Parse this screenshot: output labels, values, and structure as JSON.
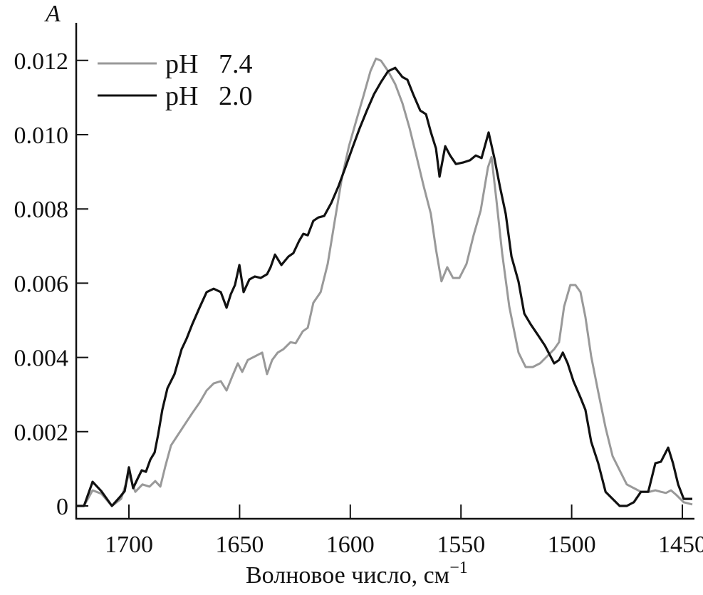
{
  "chart_data": {
    "type": "line",
    "title": "",
    "xlabel": "Волновое число, см",
    "xlabel_superscript": "−1",
    "ylabel": "A",
    "xlim": [
      1723.8,
      1445.5
    ],
    "x_reversed": true,
    "ylim": [
      0,
      0.0124
    ],
    "xticks": [
      1700,
      1650,
      1600,
      1550,
      1500,
      1450
    ],
    "xtick_labels": [
      "1700",
      "1650",
      "1600",
      "1550",
      "1500",
      "1450"
    ],
    "yticks": [
      0,
      0.002,
      0.004,
      0.006,
      0.008,
      0.01,
      0.012
    ],
    "ytick_labels": [
      "0",
      "0.002",
      "0.004",
      "0.006",
      "0.008",
      "0.010",
      "0.012"
    ],
    "grid": false,
    "legend_position": "top-left",
    "series": [
      {
        "name": "pH   7.4",
        "color": "#999999",
        "x": [
          1723.8,
          1720.3,
          1716.4,
          1712.5,
          1707.7,
          1703.5,
          1700,
          1697.1,
          1693.9,
          1690.7,
          1688.1,
          1685.8,
          1683.6,
          1681.0,
          1677.8,
          1674.6,
          1671.4,
          1668.1,
          1664.9,
          1661.7,
          1658.5,
          1655.9,
          1653.3,
          1650.8,
          1648.8,
          1646.3,
          1643.0,
          1639.8,
          1637.6,
          1635.3,
          1632.8,
          1630.2,
          1627.0,
          1624.7,
          1621.5,
          1619.2,
          1616.7,
          1613.4,
          1610.2,
          1607.0,
          1603.8,
          1600.6,
          1597.4,
          1594.1,
          1590.9,
          1588.4,
          1586.1,
          1582.9,
          1579.7,
          1576.4,
          1573.2,
          1570.0,
          1566.8,
          1563.6,
          1561.3,
          1558.8,
          1556.2,
          1553.6,
          1550.7,
          1547.5,
          1544.3,
          1541.1,
          1537.8,
          1536.2,
          1534.0,
          1531.4,
          1528.2,
          1524.0,
          1520.8,
          1517.6,
          1514.3,
          1511.1,
          1507.9,
          1505.7,
          1503.4,
          1500.6,
          1498.3,
          1496.0,
          1493.8,
          1491.2,
          1488.0,
          1484.7,
          1481.5,
          1478.3,
          1475.1,
          1471.9,
          1468.7,
          1464.8,
          1462.2,
          1459.7,
          1457.4,
          1455.1,
          1452.6,
          1449.4,
          1445.5
        ],
        "y": [
          0,
          0,
          0.00042,
          0.00033,
          0,
          0.00019,
          0.00086,
          0.00038,
          0.00058,
          0.00052,
          0.00067,
          0.00052,
          0.00106,
          0.00163,
          0.00192,
          0.00221,
          0.0025,
          0.00278,
          0.00311,
          0.0033,
          0.00336,
          0.00311,
          0.00349,
          0.00384,
          0.00361,
          0.00393,
          0.00403,
          0.00413,
          0.00355,
          0.00393,
          0.00413,
          0.00422,
          0.00441,
          0.00438,
          0.0047,
          0.0048,
          0.00547,
          0.00576,
          0.00652,
          0.00768,
          0.00883,
          0.00969,
          0.01036,
          0.01103,
          0.01171,
          0.01205,
          0.01199,
          0.01171,
          0.01136,
          0.01084,
          0.01017,
          0.0094,
          0.0086,
          0.00787,
          0.00691,
          0.00605,
          0.00643,
          0.00614,
          0.00614,
          0.00652,
          0.00729,
          0.00796,
          0.00912,
          0.0094,
          0.00825,
          0.00681,
          0.00537,
          0.00413,
          0.00374,
          0.00374,
          0.00384,
          0.00403,
          0.00422,
          0.00441,
          0.00537,
          0.00595,
          0.00595,
          0.00576,
          0.00509,
          0.00403,
          0.00307,
          0.00211,
          0.00134,
          0.00096,
          0.00058,
          0.00048,
          0.00038,
          0.00038,
          0.00042,
          0.00038,
          0.00035,
          0.00042,
          0.00029,
          0.0001,
          4e-05
        ]
      },
      {
        "name": "pH   2.0",
        "color": "#111111",
        "x": [
          1723.8,
          1720.3,
          1716.4,
          1712.5,
          1707.7,
          1704.2,
          1701.9,
          1700,
          1698.1,
          1696.1,
          1694.2,
          1692.3,
          1690.3,
          1688.4,
          1686.8,
          1684.9,
          1682.6,
          1679.4,
          1676.2,
          1673.9,
          1671.4,
          1668.1,
          1664.9,
          1661.7,
          1658.5,
          1655.9,
          1654.0,
          1652.1,
          1650.1,
          1648.2,
          1645.6,
          1643.1,
          1640.5,
          1637.6,
          1636.0,
          1634.0,
          1631.1,
          1627.9,
          1625.7,
          1623.1,
          1621.2,
          1619.2,
          1616.7,
          1614.4,
          1611.8,
          1608.6,
          1605.4,
          1602.2,
          1599.0,
          1595.8,
          1592.5,
          1589.3,
          1586.1,
          1582.9,
          1579.7,
          1576.4,
          1574.2,
          1571.6,
          1568.4,
          1565.8,
          1563.6,
          1561.3,
          1559.7,
          1557.1,
          1554.9,
          1552.3,
          1549.1,
          1545.9,
          1543.3,
          1540.7,
          1537.5,
          1534.9,
          1532.4,
          1529.8,
          1527.2,
          1524.0,
          1521.4,
          1518.5,
          1515.3,
          1512.1,
          1507.9,
          1505.7,
          1504.0,
          1501.8,
          1499.2,
          1496.0,
          1493.8,
          1491.2,
          1488.0,
          1484.7,
          1481.5,
          1478.3,
          1475.1,
          1471.9,
          1468.7,
          1465.4,
          1462.2,
          1459.7,
          1456.4,
          1454.2,
          1451.9,
          1449.4,
          1445.5
        ],
        "y": [
          0,
          0,
          0.00065,
          0.0004,
          0,
          0.00023,
          0.0004,
          0.00104,
          0.00048,
          0.00073,
          0.00096,
          0.00092,
          0.00125,
          0.00144,
          0.00192,
          0.00259,
          0.00317,
          0.00355,
          0.00422,
          0.00451,
          0.00489,
          0.00534,
          0.00576,
          0.00585,
          0.00576,
          0.00534,
          0.0057,
          0.00595,
          0.00649,
          0.00576,
          0.0061,
          0.00618,
          0.00614,
          0.00624,
          0.00643,
          0.00677,
          0.00649,
          0.00672,
          0.00681,
          0.00714,
          0.00733,
          0.00729,
          0.00768,
          0.00777,
          0.00781,
          0.00816,
          0.0086,
          0.00912,
          0.00965,
          0.01017,
          0.01065,
          0.01109,
          0.01142,
          0.01171,
          0.0118,
          0.01155,
          0.01148,
          0.01109,
          0.01065,
          0.01055,
          0.01007,
          0.00963,
          0.00887,
          0.00969,
          0.00944,
          0.00921,
          0.00925,
          0.00931,
          0.00944,
          0.00937,
          0.01006,
          0.00937,
          0.0086,
          0.00787,
          0.00672,
          0.00604,
          0.00518,
          0.00489,
          0.00461,
          0.00432,
          0.00384,
          0.00393,
          0.00413,
          0.00384,
          0.00336,
          0.00292,
          0.00259,
          0.00173,
          0.00115,
          0.00038,
          0.00019,
          0,
          0,
          0.0001,
          0.00038,
          0.00038,
          0.00115,
          0.00119,
          0.00157,
          0.00115,
          0.00058,
          0.00019,
          0.00019
        ]
      }
    ]
  }
}
